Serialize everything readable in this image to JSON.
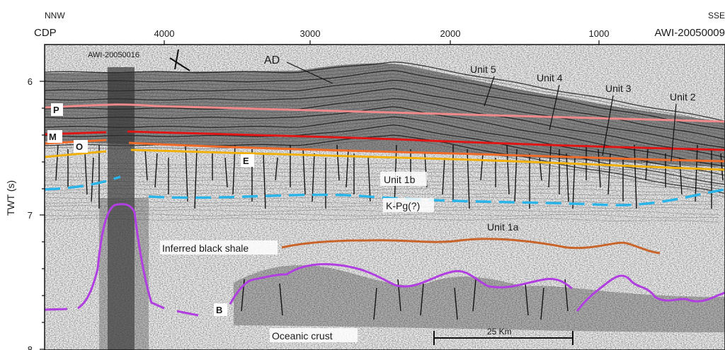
{
  "header": {
    "dir_left": "NNW",
    "dir_right": "SSE",
    "axis_label": "CDP",
    "line_right": "AWI-20050009"
  },
  "cdp_ticks": [
    "4000",
    "3000",
    "2000",
    "1000"
  ],
  "twt_axis": {
    "label": "TWT (s)",
    "ticks": [
      "6",
      "7",
      "8"
    ]
  },
  "crossing_line": "AWI-20050016",
  "features": {
    "ad": "AD",
    "unit5": "Unit 5",
    "unit4": "Unit 4",
    "unit3": "Unit 3",
    "unit2": "Unit 2",
    "unit1b": "Unit 1b",
    "kpg": "K-Pg(?)",
    "unit1a": "Unit 1a",
    "black_shale": "Inferred black shale",
    "oceanic_crust": "Oceanic crust",
    "scale_bar": "25 Km"
  },
  "horizons": {
    "p": "P",
    "m": "M",
    "o": "O",
    "e": "E",
    "b": "B"
  },
  "colors": {
    "p": "#f08a8a",
    "m": "#e01515",
    "o": "#f06a2a",
    "e": "#f2b00a",
    "kpg": "#2ab4e8",
    "shale": "#c8642a",
    "basement": "#b03ee0"
  }
}
